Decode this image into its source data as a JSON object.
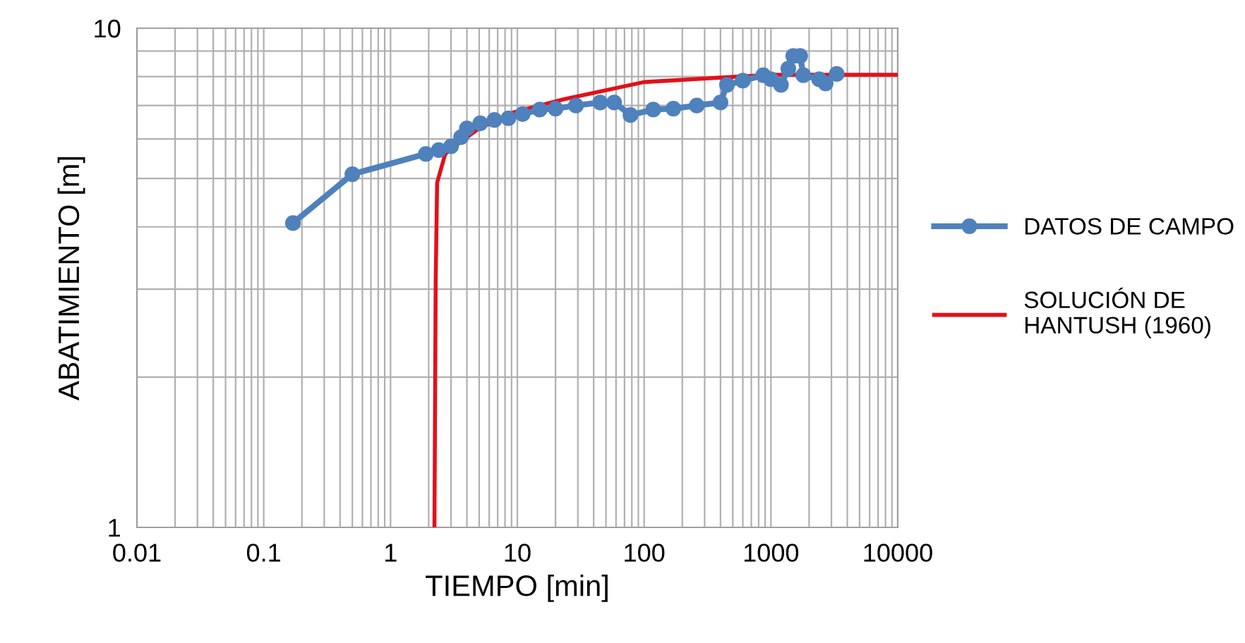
{
  "chart_data": {
    "type": "line",
    "xlabel": "TIEMPO [min]",
    "ylabel": "ABATIMIENTO [m]",
    "log": "xy",
    "grid": true,
    "legend": "right",
    "xlim": [
      0.01,
      10000
    ],
    "ylim": [
      1,
      10
    ],
    "xticks": [
      0.01,
      0.1,
      1,
      10,
      100,
      1000,
      10000
    ],
    "yticks": [
      1,
      10
    ],
    "series": [
      {
        "name": "DATOS DE CAMPO",
        "color": "#4f81bd",
        "marker": "circle",
        "x": [
          0.17,
          0.5,
          1.9,
          2.4,
          3.0,
          3.6,
          4.0,
          5.1,
          6.6,
          8.5,
          11,
          15,
          20,
          29,
          45,
          58,
          78,
          118,
          170,
          260,
          400,
          450,
          600,
          870,
          1000,
          1200,
          1370,
          1500,
          1700,
          1800,
          2400,
          2700,
          3300
        ],
        "values": [
          4.07,
          5.1,
          5.6,
          5.7,
          5.8,
          6.05,
          6.3,
          6.45,
          6.55,
          6.6,
          6.73,
          6.87,
          6.9,
          7.0,
          7.1,
          7.1,
          6.7,
          6.87,
          6.9,
          7.0,
          7.1,
          7.7,
          7.85,
          8.05,
          7.9,
          7.7,
          8.3,
          8.8,
          8.8,
          8.05,
          7.9,
          7.75,
          8.1
        ]
      },
      {
        "name": "SOLUCIÓN DE\nHANTUSH (1960)",
        "color": "#e3101a",
        "marker": "none",
        "x": [
          2.22,
          2.27,
          2.33,
          2.7,
          3.5,
          5,
          9.6,
          23,
          100,
          1000,
          10000
        ],
        "values": [
          1.0,
          3.1,
          4.9,
          5.6,
          5.9,
          6.3,
          6.8,
          7.2,
          7.8,
          8.07,
          8.07
        ]
      }
    ]
  }
}
